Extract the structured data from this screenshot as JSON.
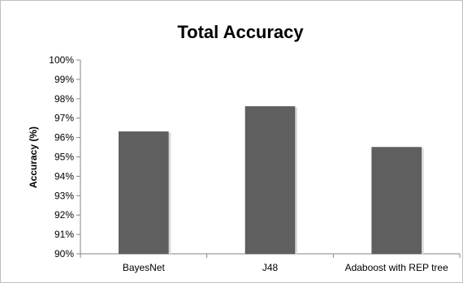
{
  "chart_data": {
    "type": "bar",
    "title": "Total Accuracy",
    "xlabel": "",
    "ylabel": "Accuracy (%)",
    "categories": [
      "BayesNet",
      "J48",
      "Adaboost with REP tree"
    ],
    "values": [
      96.3,
      97.6,
      95.5
    ],
    "ylim": [
      90,
      100
    ],
    "yticks": [
      "90%",
      "91%",
      "92%",
      "93%",
      "94%",
      "95%",
      "96%",
      "97%",
      "98%",
      "99%",
      "100%"
    ],
    "grid": false,
    "legend": "none",
    "bar_color": "#5f5f5f"
  }
}
